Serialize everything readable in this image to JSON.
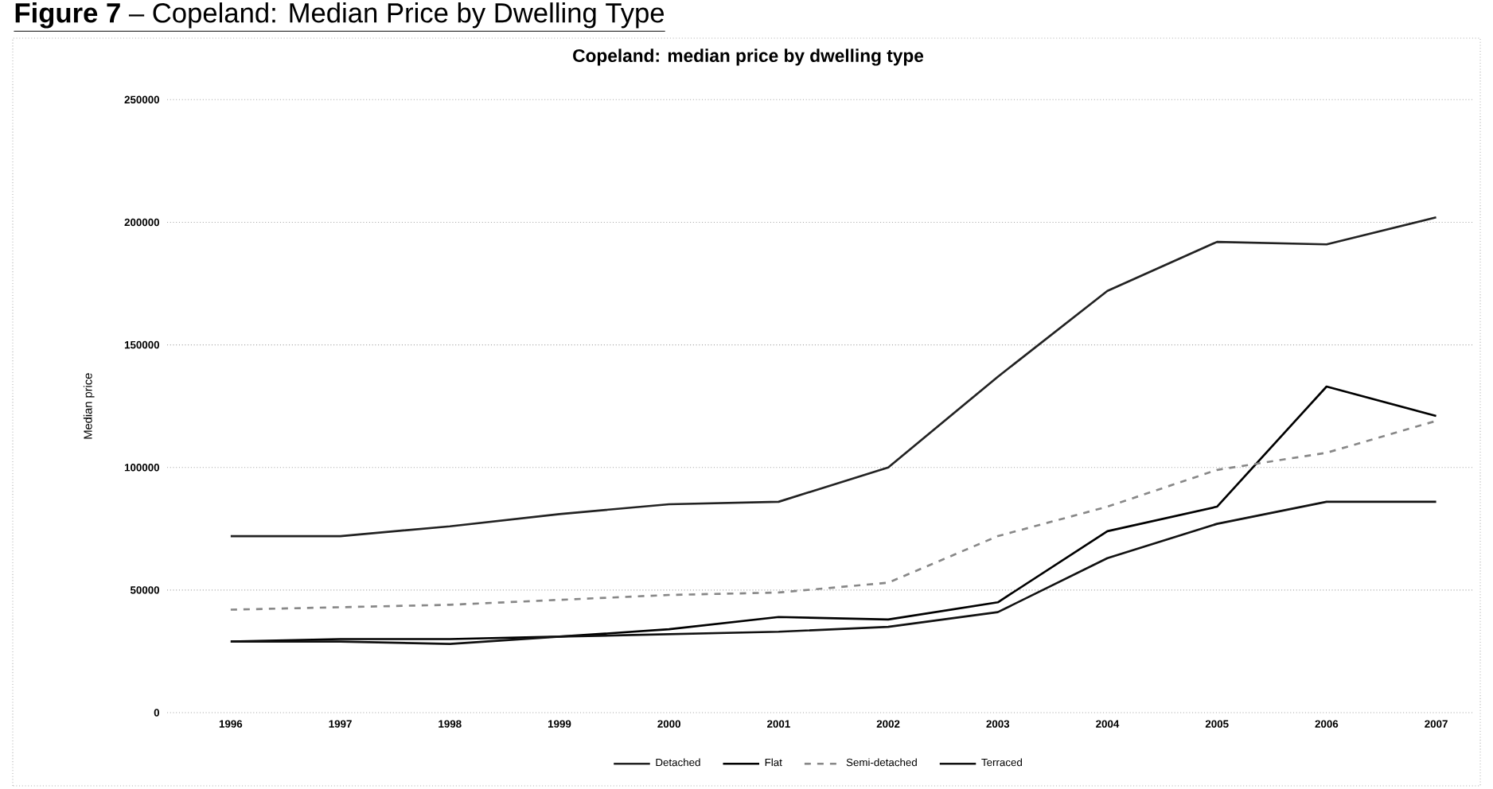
{
  "chart_data": {
    "type": "line",
    "title": "**Figure 7** – Copeland: Median Price by Dwelling Type",
    "subtitle": "Copeland: median price by dwelling type",
    "ylabel": "Median price",
    "categories": [
      "1996",
      "1997",
      "1998",
      "1999",
      "2000",
      "2001",
      "2002",
      "2003",
      "2004",
      "2005",
      "2006",
      "2007"
    ],
    "series": [
      {
        "name": "Detached",
        "color": "#222222",
        "line_style": "solid",
        "values": [
          72000,
          72000,
          76000,
          81000,
          85000,
          86000,
          100000,
          137000,
          172000,
          192000,
          191000,
          202000
        ]
      },
      {
        "name": "Flat",
        "color": "#000000",
        "line_style": "solid",
        "values": [
          29000,
          30000,
          30000,
          31000,
          34000,
          39000,
          38000,
          45000,
          74000,
          84000,
          133000,
          121000
        ]
      },
      {
        "name": "Semi-detached",
        "color": "#888888",
        "line_style": "dashed",
        "values": [
          42000,
          43000,
          44000,
          46000,
          48000,
          49000,
          53000,
          72000,
          84000,
          99000,
          106000,
          119000
        ]
      },
      {
        "name": "Terraced",
        "color": "#111111",
        "line_style": "solid",
        "values": [
          29000,
          29000,
          28000,
          31000,
          32000,
          33000,
          35000,
          41000,
          63000,
          77000,
          86000,
          86000
        ]
      }
    ],
    "ylim": [
      0,
      250000
    ],
    "yticks": [
      0,
      50000,
      100000,
      150000,
      200000,
      250000
    ],
    "grid": "y",
    "legend": "bottom"
  }
}
